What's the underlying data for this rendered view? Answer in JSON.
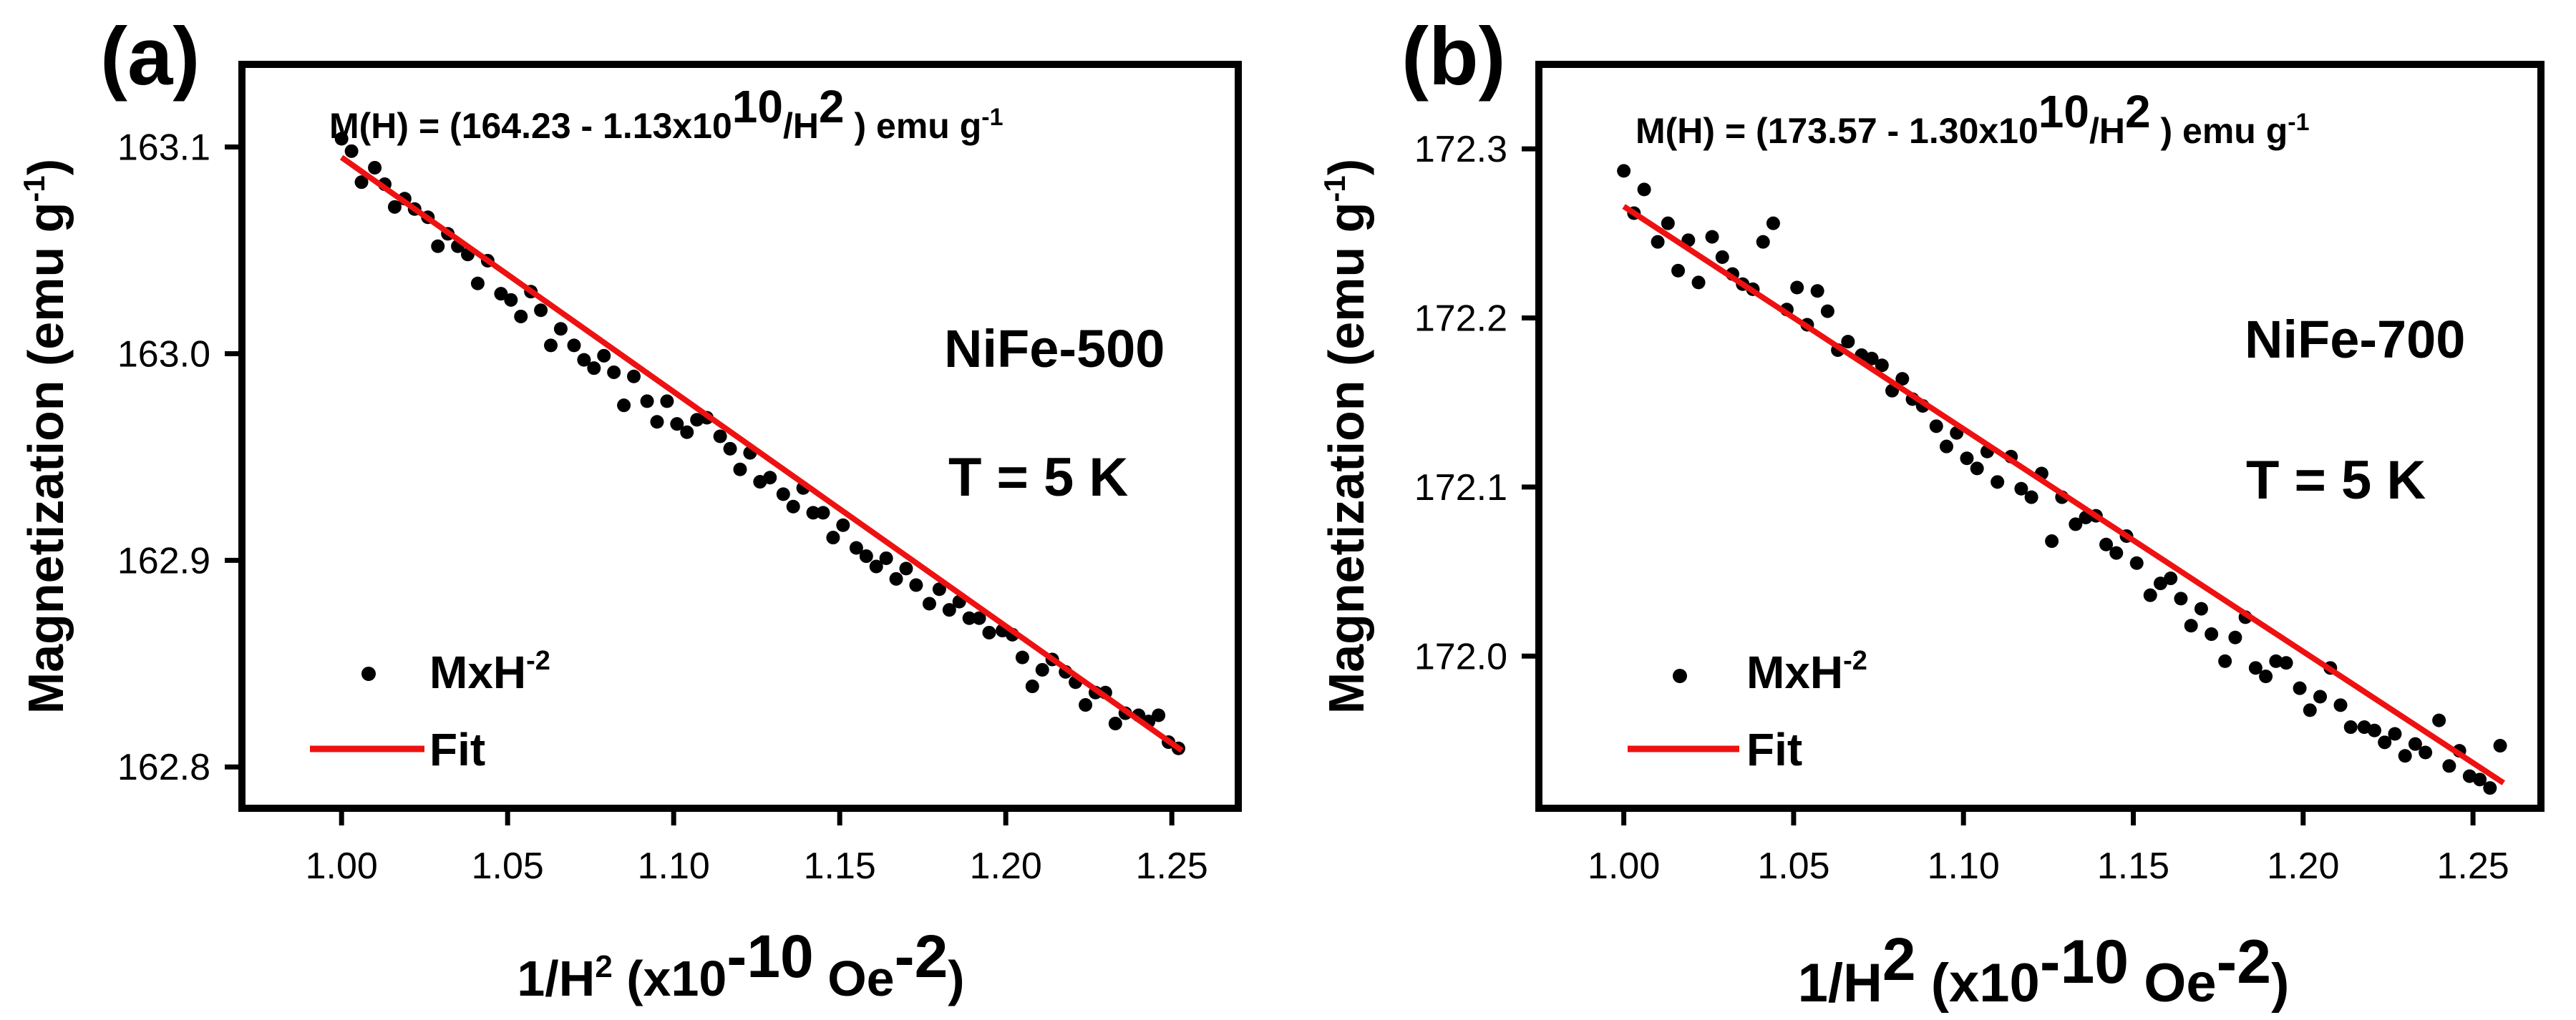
{
  "figure": {
    "panels": [
      {
        "panel_label": "(a)",
        "equation": {
          "prefix": "M(H) = (164.23 - 1.13x10",
          "exp1": "10",
          "mid": "/H",
          "exp2": "2",
          "after": " ) emu g",
          "exp3": "-1"
        },
        "sample_label": "NiFe-500",
        "sample_color": "#000000",
        "temperature_label": "T = 5 K",
        "legend": {
          "points": "MxH",
          "points_sup": "-2",
          "fit": "Fit"
        },
        "ylabel": "Magnetization (emu g",
        "ylabel_sup": "-1",
        "ylabel_close": ")",
        "xlabel": {
          "a": "1/H",
          "a_sup": "2",
          "b": " (x10",
          "b_sup": "-10",
          "c": " Oe",
          "c_sup": "-2",
          "d": ")"
        }
      },
      {
        "panel_label": "(b)",
        "equation": {
          "prefix": "M(H) = (173.57 - 1.30x10",
          "exp1": "10",
          "mid": "/H",
          "exp2": "2",
          "after": " ) emu g",
          "exp3": "-1"
        },
        "sample_label": "NiFe-700",
        "sample_color": "#ff1a1a",
        "temperature_label": "T = 5 K",
        "legend": {
          "points": "MxH",
          "points_sup": "-2",
          "fit": "Fit"
        },
        "ylabel": "Magnetization (emu g",
        "ylabel_sup": "-1",
        "ylabel_close": ")",
        "xlabel": {
          "a": "1/H",
          "a_sup": "2",
          "b": " (x10",
          "b_sup": "-10",
          "c": " Oe",
          "c_sup": "-2",
          "d": ")"
        }
      }
    ]
  },
  "chart_data": [
    {
      "type": "scatter",
      "title": "NiFe-500, T = 5 K",
      "xlabel": "1/H2 (x10-10 Oe-2)",
      "ylabel": "Magnetization (emu g-1)",
      "xlim": [
        0.97,
        1.27
      ],
      "ylim": [
        162.78,
        163.14
      ],
      "xticks": [
        1.0,
        1.05,
        1.1,
        1.15,
        1.2,
        1.25
      ],
      "xtick_labels": [
        "1.00",
        "1.05",
        "1.10",
        "1.15",
        "1.20",
        "1.25"
      ],
      "yticks": [
        162.8,
        162.9,
        163.0,
        163.1
      ],
      "ytick_labels": [
        "162.8",
        "162.9",
        "163.0",
        "163.1"
      ],
      "series": [
        {
          "name": "MxH-2",
          "kind": "scatter",
          "color": "#000000",
          "x": [
            1.0,
            1.003,
            1.006,
            1.01,
            1.013,
            1.016,
            1.019,
            1.022,
            1.026,
            1.029,
            1.032,
            1.035,
            1.038,
            1.041,
            1.044,
            1.048,
            1.051,
            1.054,
            1.057,
            1.06,
            1.063,
            1.066,
            1.07,
            1.073,
            1.076,
            1.079,
            1.082,
            1.085,
            1.088,
            1.092,
            1.095,
            1.098,
            1.101,
            1.104,
            1.107,
            1.11,
            1.114,
            1.117,
            1.12,
            1.123,
            1.126,
            1.129,
            1.133,
            1.136,
            1.139,
            1.142,
            1.145,
            1.148,
            1.151,
            1.155,
            1.158,
            1.161,
            1.164,
            1.167,
            1.17,
            1.173,
            1.177,
            1.18,
            1.183,
            1.186,
            1.189,
            1.192,
            1.195,
            1.199,
            1.202,
            1.205,
            1.208,
            1.211,
            1.214,
            1.218,
            1.221,
            1.224,
            1.227,
            1.23,
            1.233,
            1.236,
            1.24,
            1.243,
            1.246,
            1.249,
            1.252
          ],
          "y": [
            163.104,
            163.098,
            163.083,
            163.09,
            163.082,
            163.071,
            163.075,
            163.07,
            163.066,
            163.052,
            163.058,
            163.052,
            163.048,
            163.034,
            163.045,
            163.029,
            163.026,
            163.018,
            163.03,
            163.021,
            163.004,
            163.012,
            163.004,
            162.997,
            162.993,
            162.999,
            162.991,
            162.975,
            162.989,
            162.977,
            162.967,
            162.977,
            162.966,
            162.962,
            162.968,
            162.969,
            162.96,
            162.954,
            162.944,
            162.952,
            162.938,
            162.94,
            162.932,
            162.926,
            162.935,
            162.923,
            162.923,
            162.911,
            162.917,
            162.906,
            162.902,
            162.897,
            162.901,
            162.891,
            162.896,
            162.888,
            162.879,
            162.886,
            162.876,
            162.88,
            162.872,
            162.872,
            162.865,
            162.866,
            162.864,
            162.853,
            162.839,
            162.847,
            162.852,
            162.846,
            162.841,
            162.83,
            162.836,
            162.836,
            162.821,
            162.826,
            162.825,
            162.822,
            162.825,
            162.812,
            162.809
          ]
        },
        {
          "name": "Fit",
          "kind": "line",
          "color": "#ee1111",
          "x": [
            1.0,
            1.253
          ],
          "y": [
            163.095,
            162.808
          ]
        }
      ]
    },
    {
      "type": "scatter",
      "title": "NiFe-700, T = 5 K",
      "xlabel": "1/H2 (x10-10 Oe-2)",
      "ylabel": "Magnetization (emu g-1)",
      "xlim": [
        0.975,
        1.27
      ],
      "ylim": [
        171.91,
        172.35
      ],
      "xticks": [
        1.0,
        1.05,
        1.1,
        1.15,
        1.2,
        1.25
      ],
      "xtick_labels": [
        "1.00",
        "1.05",
        "1.10",
        "1.15",
        "1.20",
        "1.25"
      ],
      "yticks": [
        172.0,
        172.1,
        172.2,
        172.3
      ],
      "ytick_labels": [
        "172.0",
        "172.1",
        "172.2",
        "172.3"
      ],
      "series": [
        {
          "name": "MxH-2",
          "kind": "scatter",
          "color": "#000000",
          "x": [
            1.0,
            1.003,
            1.006,
            1.01,
            1.013,
            1.016,
            1.019,
            1.022,
            1.026,
            1.029,
            1.032,
            1.035,
            1.038,
            1.041,
            1.044,
            1.048,
            1.051,
            1.054,
            1.057,
            1.06,
            1.063,
            1.066,
            1.07,
            1.073,
            1.076,
            1.079,
            1.082,
            1.085,
            1.088,
            1.092,
            1.095,
            1.098,
            1.101,
            1.104,
            1.107,
            1.11,
            1.114,
            1.117,
            1.12,
            1.123,
            1.126,
            1.129,
            1.133,
            1.136,
            1.139,
            1.142,
            1.145,
            1.148,
            1.151,
            1.155,
            1.158,
            1.161,
            1.164,
            1.167,
            1.17,
            1.173,
            1.177,
            1.18,
            1.183,
            1.186,
            1.189,
            1.192,
            1.195,
            1.199,
            1.202,
            1.205,
            1.208,
            1.211,
            1.214,
            1.218,
            1.221,
            1.224,
            1.227,
            1.23,
            1.233,
            1.236,
            1.24,
            1.243,
            1.246,
            1.249,
            1.252,
            1.255,
            1.258
          ],
          "y": [
            172.287,
            172.262,
            172.276,
            172.245,
            172.256,
            172.228,
            172.246,
            172.221,
            172.248,
            172.236,
            172.226,
            172.22,
            172.217,
            172.245,
            172.256,
            172.205,
            172.218,
            172.196,
            172.216,
            172.204,
            172.181,
            172.186,
            172.178,
            172.176,
            172.172,
            172.157,
            172.164,
            172.152,
            172.148,
            172.136,
            172.124,
            172.132,
            172.117,
            172.111,
            172.121,
            172.103,
            172.118,
            172.099,
            172.094,
            172.108,
            172.068,
            172.094,
            172.078,
            172.082,
            172.083,
            172.066,
            172.061,
            172.071,
            172.055,
            172.036,
            172.043,
            172.046,
            172.034,
            172.018,
            172.028,
            172.013,
            171.997,
            172.011,
            172.023,
            171.993,
            171.988,
            171.997,
            171.996,
            171.981,
            171.968,
            171.976,
            171.993,
            171.971,
            171.958,
            171.958,
            171.956,
            171.949,
            171.954,
            171.941,
            171.948,
            171.943,
            171.962,
            171.935,
            171.944,
            171.929,
            171.927,
            171.922,
            171.947
          ]
        },
        {
          "name": "Fit",
          "kind": "line",
          "color": "#ee1111",
          "x": [
            1.0,
            1.259
          ],
          "y": [
            172.266,
            171.925
          ]
        }
      ]
    }
  ]
}
